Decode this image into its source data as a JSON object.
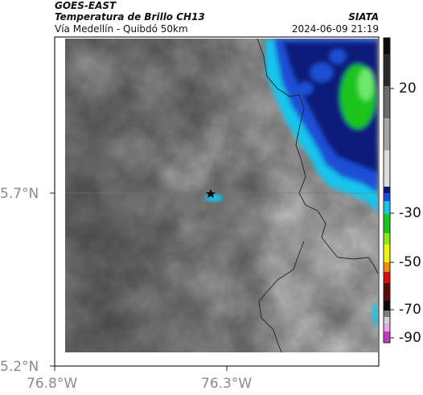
{
  "header": {
    "satellite": "GOES-EAST",
    "product": "Temperatura de Brillo CH13",
    "region": "Vía Medellín - Quibdó 50km",
    "agency": "SIATA",
    "datetime": "2024-06-09 21:19"
  },
  "axes": {
    "lat_ticks": [
      "5.7°N",
      "5.2°N"
    ],
    "lon_ticks": [
      "76.8°W",
      "76.3°W"
    ]
  },
  "colorbar": {
    "ticks": [
      "20",
      "-30",
      "-50",
      "-70",
      "-90"
    ],
    "colors": {
      "black": "#0b0b0b",
      "gray": "#8c8c8c",
      "light_gray": "#d9d9d9",
      "navy": "#0a1a7a",
      "blue": "#1d4fd6",
      "cyan": "#18c4ec",
      "green": "#1fc41a",
      "yellow": "#f2f210",
      "red": "#d81010",
      "magenta": "#c23bc0"
    }
  },
  "legend": {
    "station_marker": "star-icon"
  }
}
